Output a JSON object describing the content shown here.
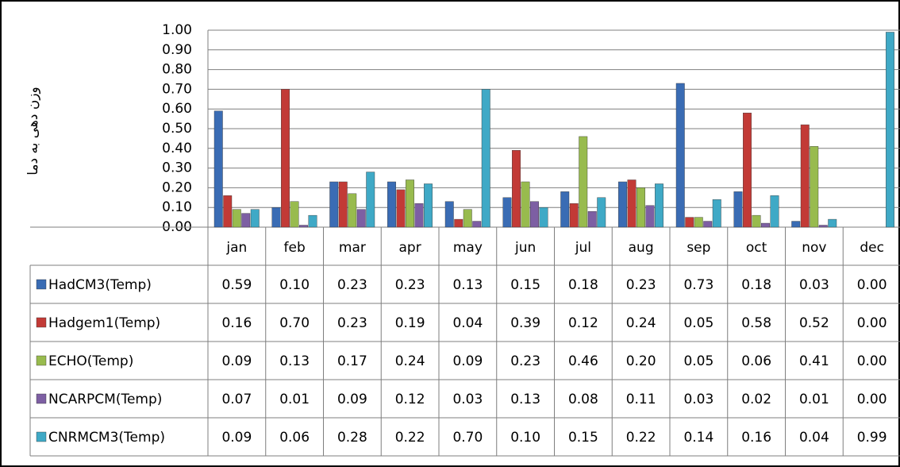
{
  "chart_data": {
    "type": "bar",
    "y_label": "وزن دهی به دما",
    "categories": [
      "jan",
      "feb",
      "mar",
      "apr",
      "may",
      "jun",
      "jul",
      "aug",
      "sep",
      "oct",
      "nov",
      "dec"
    ],
    "series": [
      {
        "name": "HadCM3(Temp)",
        "color": "#3a6cb4",
        "values": [
          0.59,
          0.1,
          0.23,
          0.23,
          0.13,
          0.15,
          0.18,
          0.23,
          0.73,
          0.18,
          0.03,
          0
        ],
        "value_labels": [
          "0.59",
          "0.10",
          "0.23",
          "0.23",
          "0.13",
          "0.15",
          "0.18",
          "0.23",
          "0.73",
          "0.18",
          "0.03",
          "0.00"
        ]
      },
      {
        "name": "Hadgem1(Temp)",
        "color": "#c23a36",
        "values": [
          0.16,
          0.7,
          0.23,
          0.19,
          0.04,
          0.39,
          0.12,
          0.24,
          0.05,
          0.58,
          0.52,
          0
        ],
        "value_labels": [
          "0.16",
          "0.70",
          "0.23",
          "0.19",
          "0.04",
          "0.39",
          "0.12",
          "0.24",
          "0.05",
          "0.58",
          "0.52",
          "0.00"
        ]
      },
      {
        "name": "ECHO(Temp)",
        "color": "#98bb4e",
        "values": [
          0.09,
          0.13,
          0.17,
          0.24,
          0.09,
          0.23,
          0.46,
          0.2,
          0.05,
          0.06,
          0.41,
          0
        ],
        "value_labels": [
          "0.09",
          "0.13",
          "0.17",
          "0.24",
          "0.09",
          "0.23",
          "0.46",
          "0.20",
          "0.05",
          "0.06",
          "0.41",
          "0.00"
        ]
      },
      {
        "name": "NCARPCM(Temp)",
        "color": "#7d5fa3",
        "values": [
          0.07,
          0.01,
          0.09,
          0.12,
          0.03,
          0.13,
          0.08,
          0.11,
          0.03,
          0.02,
          0.01,
          0
        ],
        "value_labels": [
          "0.07",
          "0.01",
          "0.09",
          "0.12",
          "0.03",
          "0.13",
          "0.08",
          "0.11",
          "0.03",
          "0.02",
          "0.01",
          "0.00"
        ]
      },
      {
        "name": "CNRMCM3(Temp)",
        "color": "#3fa9c6",
        "values": [
          0.09,
          0.06,
          0.28,
          0.22,
          0.7,
          0.1,
          0.15,
          0.22,
          0.14,
          0.16,
          0.04,
          0.99
        ],
        "value_labels": [
          "0.09",
          "0.06",
          "0.28",
          "0.22",
          "0.70",
          "0.10",
          "0.15",
          "0.22",
          "0.14",
          "0.16",
          "0.04",
          "0.99"
        ]
      }
    ],
    "ylim": [
      0,
      1
    ],
    "yticks": [
      {
        "value": 0,
        "label": "0.00"
      },
      {
        "value": 0.1,
        "label": "0.10"
      },
      {
        "value": 0.2,
        "label": "0.20"
      },
      {
        "value": 0.3,
        "label": "0.30"
      },
      {
        "value": 0.4,
        "label": "0.40"
      },
      {
        "value": 0.5,
        "label": "0.50"
      },
      {
        "value": 0.6,
        "label": "0.60"
      },
      {
        "value": 0.7,
        "label": "0.70"
      },
      {
        "value": 0.8,
        "label": "0.80"
      },
      {
        "value": 0.9,
        "label": "0.90"
      },
      {
        "value": 1,
        "label": "1.00"
      }
    ],
    "grid": true
  }
}
